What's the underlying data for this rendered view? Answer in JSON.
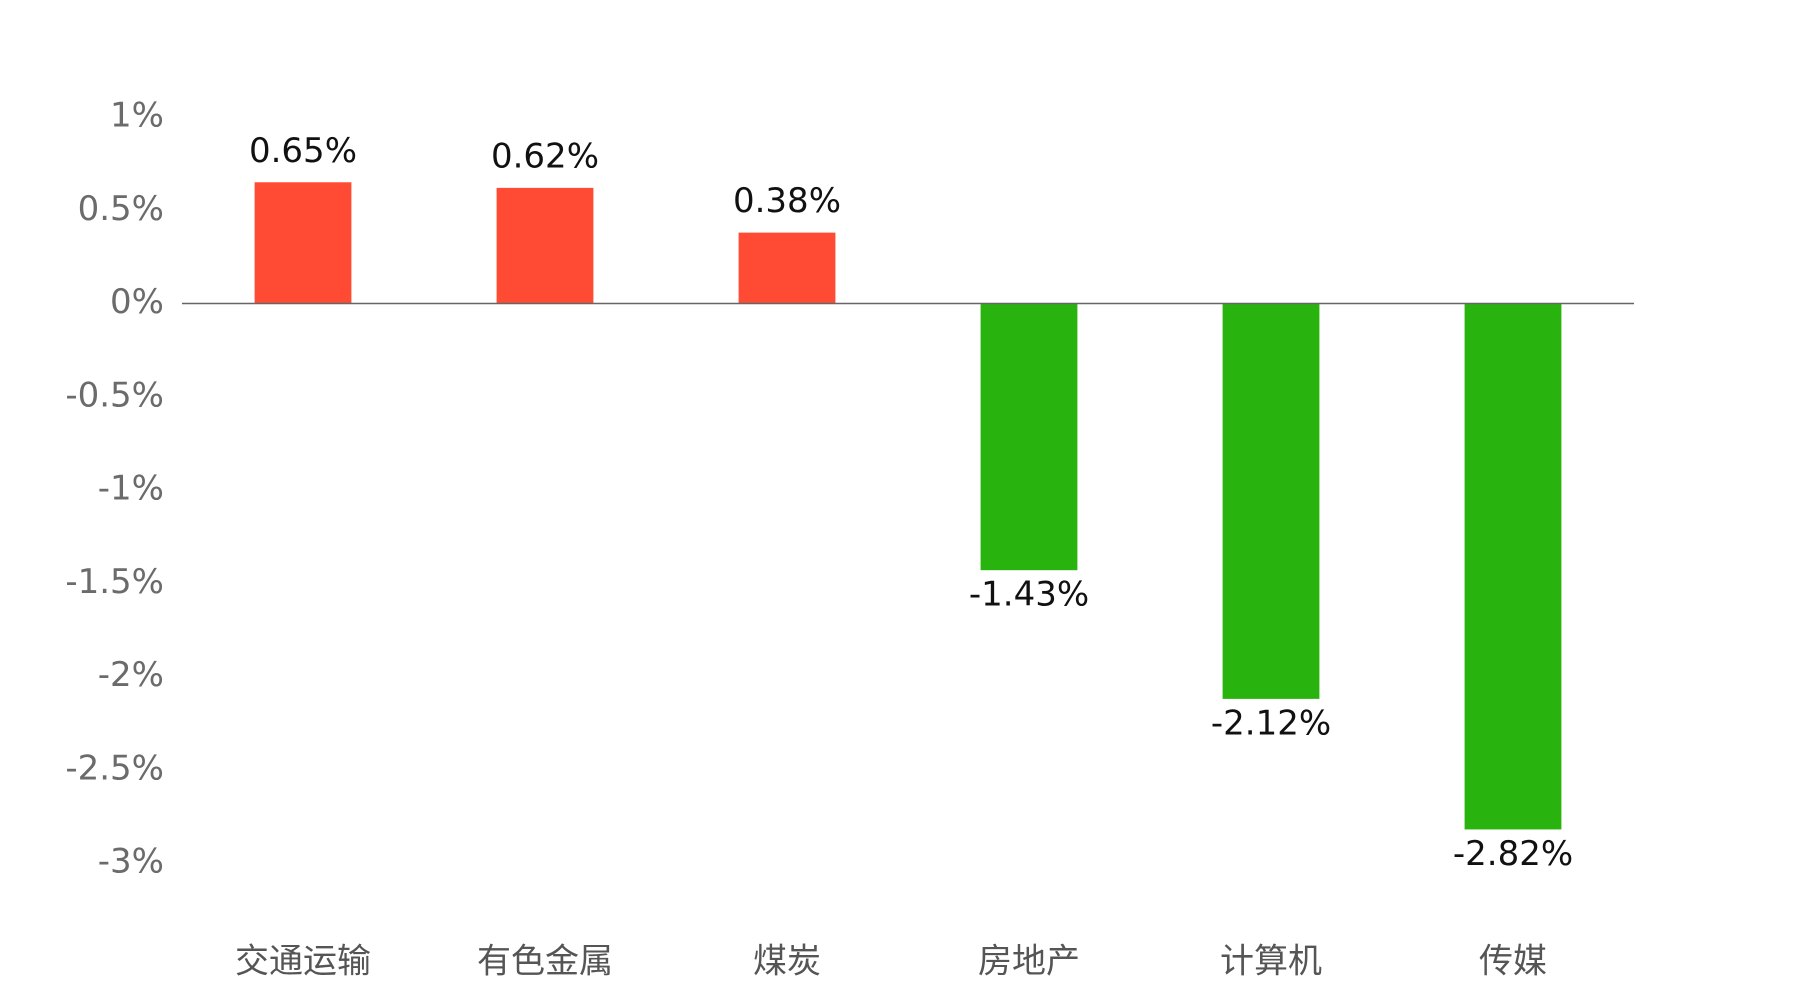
{
  "chart_data": {
    "type": "bar",
    "categories": [
      "交通运输",
      "有色金属",
      "煤炭",
      "房地产",
      "计算机",
      "传媒"
    ],
    "values": [
      0.65,
      0.62,
      0.38,
      -1.43,
      -2.12,
      -2.82
    ],
    "value_labels": [
      "0.65%",
      "0.62%",
      "0.38%",
      "-1.43%",
      "-2.12%",
      "-2.82%"
    ],
    "positive_color": "#ff4b33",
    "negative_color": "#28b30e",
    "ylim": [
      -3,
      1
    ],
    "yticks": [
      {
        "value": 1,
        "label": "1%"
      },
      {
        "value": 0.5,
        "label": "0.5%"
      },
      {
        "value": 0,
        "label": "0%"
      },
      {
        "value": -0.5,
        "label": "-0.5%"
      },
      {
        "value": -1,
        "label": "-1%"
      },
      {
        "value": -1.5,
        "label": "-1.5%"
      },
      {
        "value": -2,
        "label": "-2%"
      },
      {
        "value": -2.5,
        "label": "-2.5%"
      },
      {
        "value": -3,
        "label": "-3%"
      }
    ],
    "grid": false
  }
}
